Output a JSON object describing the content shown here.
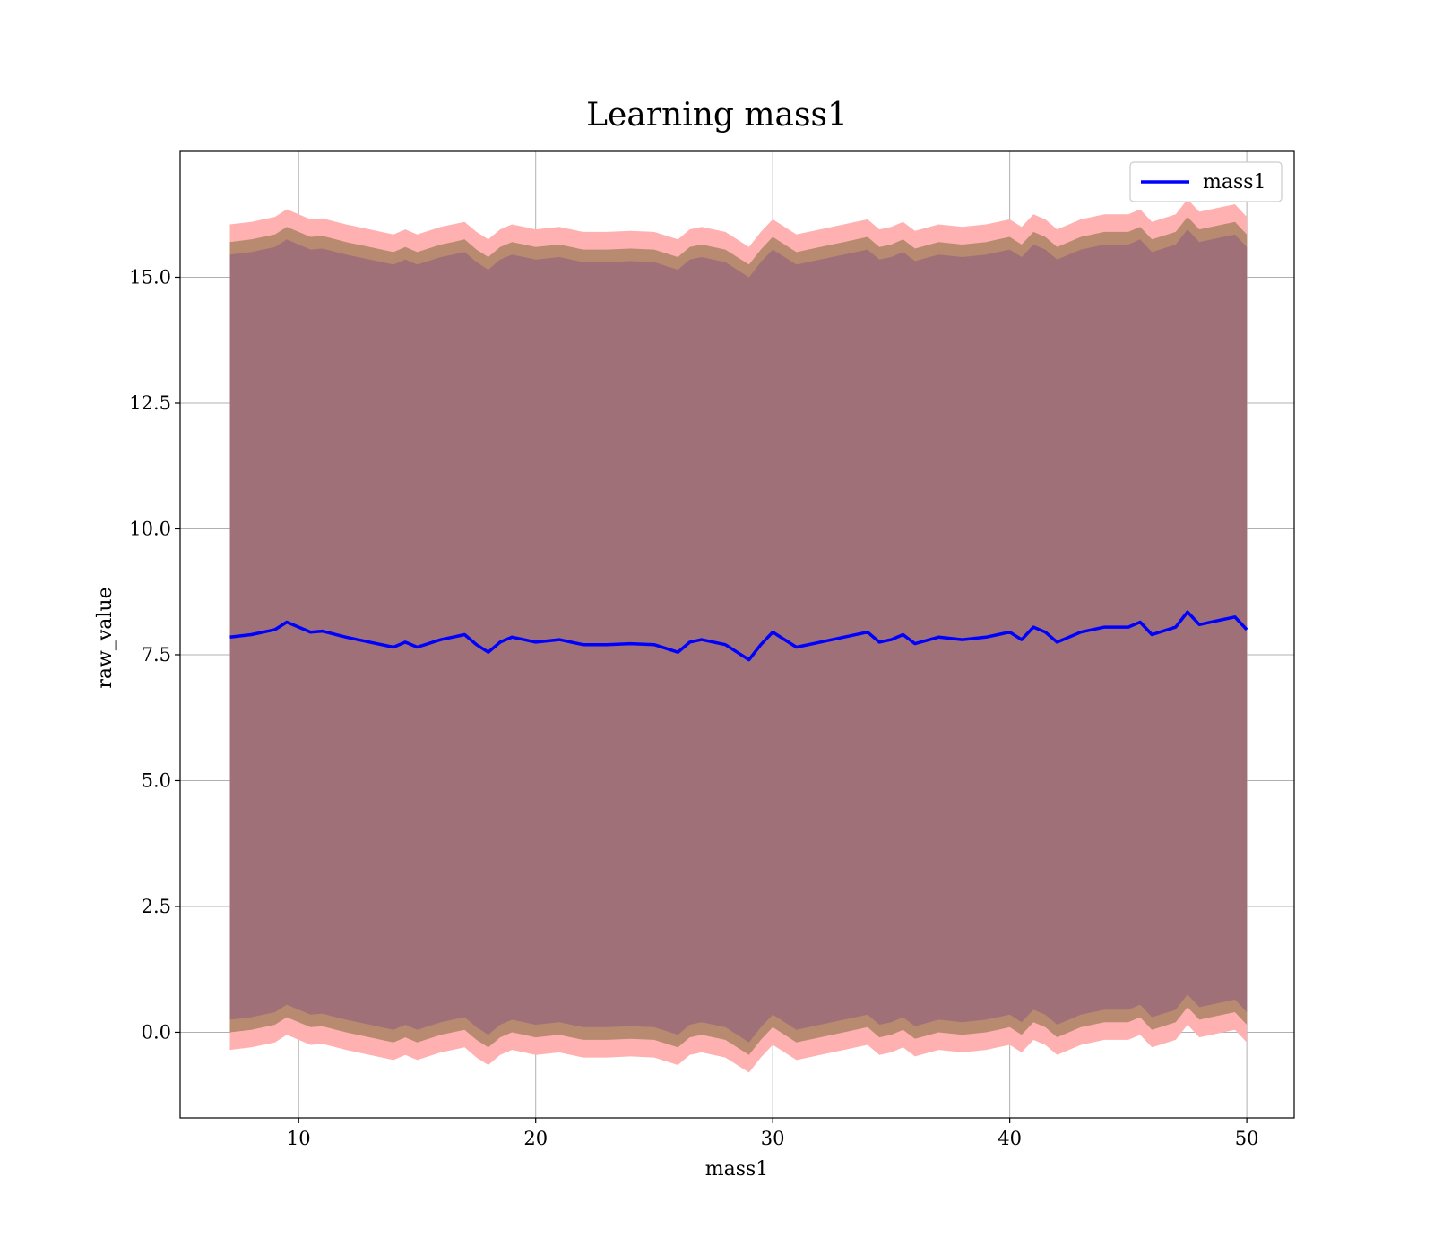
{
  "chart_data": {
    "type": "line",
    "title": "Learning mass1",
    "xlabel": "mass1",
    "ylabel": "raw_value",
    "xlim": [
      5,
      52
    ],
    "ylim": [
      -1.7,
      17.5
    ],
    "xticks": [
      10,
      20,
      30,
      40,
      50
    ],
    "yticks": [
      0.0,
      2.5,
      5.0,
      7.5,
      10.0,
      12.5,
      15.0
    ],
    "xtick_labels": [
      "10",
      "20",
      "30",
      "40",
      "50"
    ],
    "ytick_labels": [
      "0.0",
      "2.5",
      "5.0",
      "7.5",
      "10.0",
      "12.5",
      "15.0"
    ],
    "grid": true,
    "legend": {
      "position": "top-right",
      "entries": [
        "mass1"
      ]
    },
    "colors": {
      "line": "#0000ff",
      "band_outer": "#ffb0b0",
      "band_middle": "#b88a70",
      "band_inner": "#a07078",
      "grid": "#b0b0b0"
    },
    "series": [
      {
        "name": "mass1",
        "x": [
          7.1,
          8.0,
          9.0,
          9.5,
          10.0,
          10.5,
          11.0,
          12.0,
          13.0,
          14.0,
          14.5,
          15.0,
          16.0,
          16.5,
          17.0,
          17.5,
          18.0,
          18.5,
          19.0,
          19.5,
          20.0,
          21.0,
          22.0,
          23.0,
          24.0,
          25.0,
          26.0,
          26.5,
          27.0,
          28.0,
          28.5,
          29.0,
          29.5,
          30.0,
          30.5,
          31.0,
          32.0,
          33.0,
          34.0,
          34.5,
          35.0,
          35.5,
          36.0,
          37.0,
          38.0,
          39.0,
          39.5,
          40.0,
          40.5,
          41.0,
          41.5,
          42.0,
          43.0,
          44.0,
          45.0,
          45.5,
          46.0,
          47.0,
          47.5,
          48.0,
          49.0,
          49.5,
          50.0
        ],
        "y": [
          7.85,
          7.9,
          8.0,
          8.15,
          8.05,
          7.95,
          7.97,
          7.85,
          7.75,
          7.65,
          7.75,
          7.65,
          7.8,
          7.85,
          7.9,
          7.7,
          7.55,
          7.75,
          7.85,
          7.8,
          7.75,
          7.8,
          7.7,
          7.7,
          7.72,
          7.7,
          7.55,
          7.75,
          7.8,
          7.7,
          7.55,
          7.4,
          7.7,
          7.95,
          7.8,
          7.65,
          7.75,
          7.85,
          7.95,
          7.75,
          7.8,
          7.9,
          7.72,
          7.85,
          7.8,
          7.85,
          7.9,
          7.95,
          7.8,
          8.05,
          7.95,
          7.75,
          7.95,
          8.05,
          8.05,
          8.15,
          7.9,
          8.05,
          8.35,
          8.1,
          8.2,
          8.25,
          8.0
        ],
        "band_half_widths": [
          7.7,
          7.55,
          8.2
        ]
      }
    ]
  }
}
